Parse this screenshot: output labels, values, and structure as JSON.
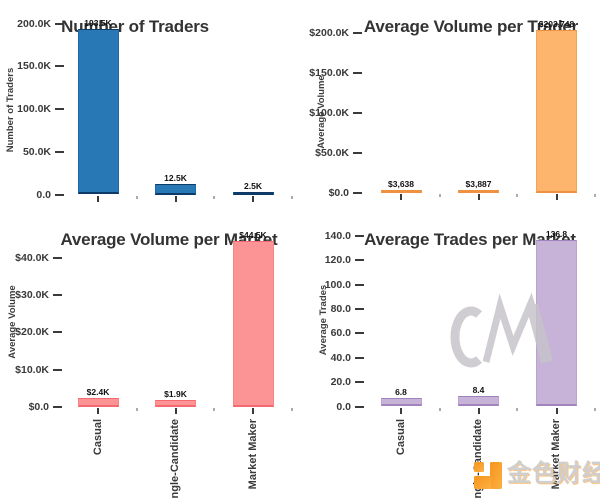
{
  "watermark": {
    "text": "CM",
    "color": "#c5c3c9"
  },
  "logo": {
    "name": "金色财经",
    "icon_color": "#f7941e",
    "icon_color_light": "#fbb042",
    "text_color": "#cfcfcf"
  },
  "chart_data": [
    {
      "id": "number-of-traders",
      "type": "bar",
      "title": "Number of Traders",
      "ylabel": "Number of Traders",
      "xlabel": "",
      "categories": [
        "Casual",
        "Single-Candidate",
        "Market Maker"
      ],
      "values": [
        193500,
        12500,
        2500
      ],
      "bar_labels": [
        "193.5K",
        "12.5K",
        "2.5K"
      ],
      "ylim": [
        0,
        200000
      ],
      "yticks": [
        {
          "value": 0,
          "label": "0.0"
        },
        {
          "value": 50000,
          "label": "50.0K"
        },
        {
          "value": 100000,
          "label": "100.0K"
        },
        {
          "value": 150000,
          "label": "150.0K"
        },
        {
          "value": 200000,
          "label": "200.0K"
        }
      ],
      "grid": false,
      "legend": false,
      "bar_color": "#2778b5",
      "bar_edge_soft": "#1e6aa5",
      "bar_edge_dark": "#0d3a66",
      "show_xticklabels": false
    },
    {
      "id": "average-volume-per-trader",
      "type": "bar",
      "title": "Average Volume per Trader",
      "ylabel": "Average Volume",
      "xlabel": "",
      "categories": [
        "Casual",
        "Single-Candidate",
        "Market Maker"
      ],
      "values": [
        3638,
        3887,
        203748
      ],
      "bar_labels": [
        "$3,638",
        "$3,887",
        "$203,748"
      ],
      "ylim": [
        0,
        210000
      ],
      "yticks": [
        {
          "value": 0,
          "label": "$0.0"
        },
        {
          "value": 50000,
          "label": "$50.0K"
        },
        {
          "value": 100000,
          "label": "$100.0K"
        },
        {
          "value": 150000,
          "label": "$150.0K"
        },
        {
          "value": 200000,
          "label": "$200.0K"
        }
      ],
      "grid": false,
      "legend": false,
      "bar_color": "#fdb46d",
      "bar_edge_soft": "#f7a455",
      "bar_edge_dark": "#ee9140",
      "show_xticklabels": false
    },
    {
      "id": "average-volume-per-market",
      "type": "bar",
      "title": "Average Volume per Market",
      "ylabel": "Average Volume",
      "xlabel": "",
      "categories": [
        "Casual",
        "Single-Candidate",
        "Market Maker"
      ],
      "values": [
        2400,
        1900,
        44500
      ],
      "bar_labels": [
        "$2.4K",
        "$1.9K",
        "$44.5K"
      ],
      "ylim": [
        0,
        46000
      ],
      "yticks": [
        {
          "value": 0,
          "label": "$0.0"
        },
        {
          "value": 10000,
          "label": "$10.0K"
        },
        {
          "value": 20000,
          "label": "$20.0K"
        },
        {
          "value": 30000,
          "label": "$30.0K"
        },
        {
          "value": 40000,
          "label": "$40.0K"
        }
      ],
      "grid": false,
      "legend": false,
      "bar_color": "#fc9496",
      "bar_edge_soft": "#f98486",
      "bar_edge_dark": "#f2696f",
      "show_xticklabels": true
    },
    {
      "id": "average-trades-per-market",
      "type": "bar",
      "title": "Average Trades per Market",
      "ylabel": "Average Trades",
      "xlabel": "",
      "categories": [
        "Casual",
        "Single-Candidate",
        "Market Maker"
      ],
      "values": [
        6.8,
        8.4,
        136.8
      ],
      "bar_labels": [
        "6.8",
        "8.4",
        "136.8"
      ],
      "ylim": [
        0,
        142
      ],
      "yticks": [
        {
          "value": 0,
          "label": "0.0"
        },
        {
          "value": 20,
          "label": "20.0"
        },
        {
          "value": 40,
          "label": "40.0"
        },
        {
          "value": 60,
          "label": "60.0"
        },
        {
          "value": 80,
          "label": "80.0"
        },
        {
          "value": 100,
          "label": "100.0"
        },
        {
          "value": 120,
          "label": "120.0"
        },
        {
          "value": 140,
          "label": "140.0"
        }
      ],
      "grid": false,
      "legend": false,
      "bar_color": "#c8b3d8",
      "bar_edge_soft": "#bba3cf",
      "bar_edge_dark": "#a183be",
      "show_xticklabels": true
    }
  ]
}
